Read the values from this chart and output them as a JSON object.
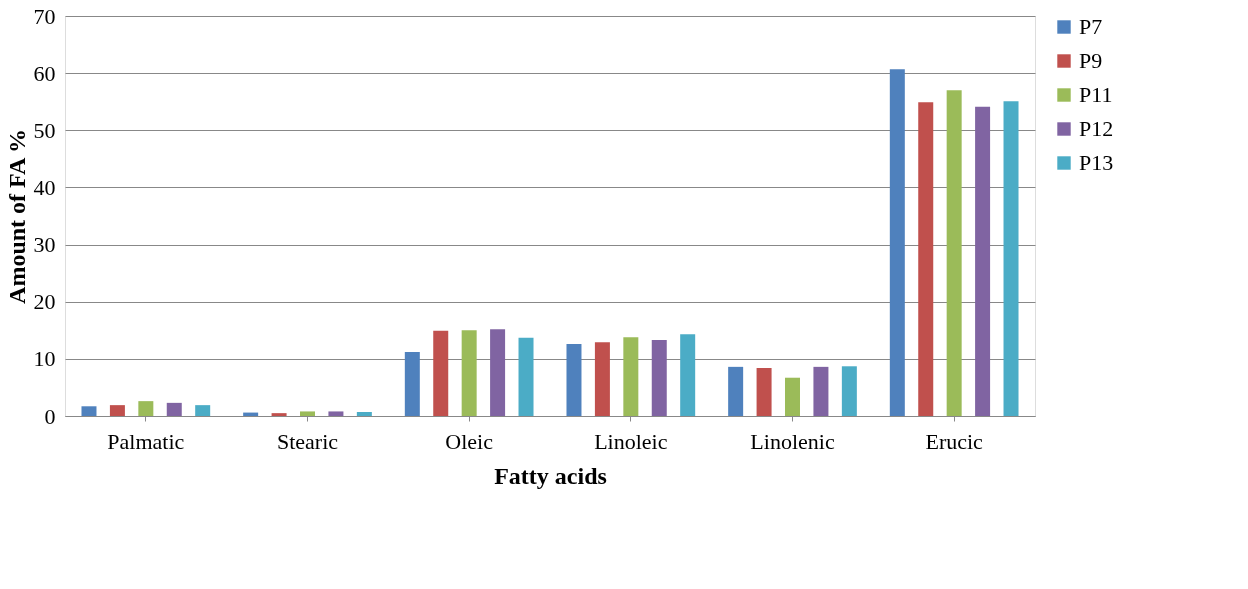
{
  "chart_data": {
    "type": "bar",
    "xlabel": "Fatty acids",
    "ylabel": "Amount of FA %",
    "categories": [
      "Palmatic",
      "Stearic",
      "Oleic",
      "Linoleic",
      "Linolenic",
      "Erucic"
    ],
    "series": [
      {
        "name": "P7",
        "color": "#4f81bd",
        "values": [
          1.7,
          0.6,
          11.2,
          12.6,
          8.6,
          60.7
        ]
      },
      {
        "name": "P9",
        "color": "#c0504d",
        "values": [
          1.9,
          0.5,
          14.9,
          12.9,
          8.4,
          54.9
        ]
      },
      {
        "name": "P11",
        "color": "#9bbb59",
        "values": [
          2.6,
          0.8,
          15.0,
          13.8,
          6.7,
          57.0
        ]
      },
      {
        "name": "P12",
        "color": "#8064a2",
        "values": [
          2.3,
          0.8,
          15.2,
          13.3,
          8.6,
          54.1
        ]
      },
      {
        "name": "P13",
        "color": "#4bacc6",
        "values": [
          1.9,
          0.7,
          13.7,
          14.3,
          8.7,
          55.1
        ]
      }
    ],
    "ylim": [
      0,
      70
    ],
    "yticks": [
      0,
      10,
      20,
      30,
      40,
      50,
      60,
      70
    ],
    "grid": "y",
    "legend": "right"
  }
}
